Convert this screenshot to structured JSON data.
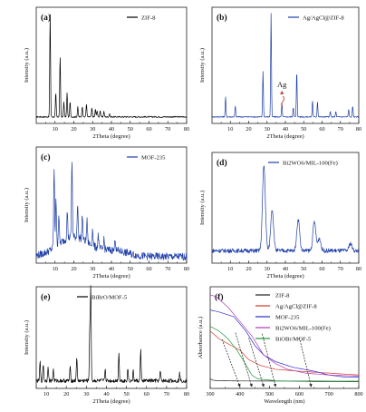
{
  "chart_data": [
    {
      "panel": "(a)",
      "type": "line",
      "xlabel": "2Theta (degree)",
      "ylabel": "Intensity (a.u.)",
      "xlim": [
        0,
        80
      ],
      "xticks": [
        10,
        20,
        30,
        40,
        50,
        60,
        70,
        80
      ],
      "yticks_shown": false,
      "legend_position": "top-right",
      "series": [
        {
          "name": "ZIF-8",
          "color": "#000000",
          "baseline": 0.06,
          "peaks": [
            [
              7.4,
              0.95
            ],
            [
              10.4,
              0.22
            ],
            [
              12.7,
              0.56
            ],
            [
              14.7,
              0.14
            ],
            [
              16.4,
              0.22
            ],
            [
              18.0,
              0.14
            ],
            [
              22.1,
              0.09
            ],
            [
              24.5,
              0.1
            ],
            [
              26.7,
              0.12
            ],
            [
              29.6,
              0.08
            ],
            [
              31.5,
              0.07
            ],
            [
              32.4,
              0.06
            ],
            [
              34.0,
              0.06
            ],
            [
              36.0,
              0.05
            ],
            [
              39.0,
              0.03
            ]
          ],
          "noise": 0.006,
          "width": 0.3
        }
      ]
    },
    {
      "panel": "(b)",
      "type": "line",
      "xlabel": "2Theta (degree)",
      "ylabel": "Intensity (a.u.)",
      "xlim": [
        0,
        80
      ],
      "xticks": [
        10,
        20,
        30,
        40,
        50,
        60,
        70,
        80
      ],
      "yticks_shown": false,
      "legend_position": "top-right",
      "series": [
        {
          "name": "Ag/AgCl@ZIF-8",
          "color": "#1f3fa8",
          "baseline": 0.06,
          "peaks": [
            [
              7.4,
              0.18
            ],
            [
              12.7,
              0.1
            ],
            [
              27.8,
              0.42
            ],
            [
              32.2,
              0.95
            ],
            [
              38.1,
              0.12
            ],
            [
              44.3,
              0.09
            ],
            [
              46.2,
              0.42
            ],
            [
              54.8,
              0.15
            ],
            [
              57.5,
              0.14
            ],
            [
              64.5,
              0.05
            ],
            [
              67.5,
              0.05
            ],
            [
              74.5,
              0.07
            ],
            [
              76.7,
              0.1
            ]
          ],
          "noise": 0.005,
          "width": 0.3
        }
      ],
      "annotations": [
        {
          "text": "Ag",
          "at": [
            38.1,
            0.25
          ]
        }
      ]
    },
    {
      "panel": "(c)",
      "type": "line",
      "xlabel": "2Theta (degree)",
      "ylabel": "Intensity (a.u.)",
      "xlim": [
        0,
        80
      ],
      "xticks": [
        10,
        20,
        30,
        40,
        50,
        60,
        70,
        80
      ],
      "yticks_shown": false,
      "legend_position": "top-right",
      "series": [
        {
          "name": "MOF-235",
          "color": "#1f3fa8",
          "baseline": 0.06,
          "peaks": [
            [
              9.5,
              0.72
            ],
            [
              10.5,
              0.45
            ],
            [
              12.0,
              0.28
            ],
            [
              16.5,
              0.25
            ],
            [
              19.0,
              0.7
            ],
            [
              22.0,
              0.32
            ],
            [
              24.5,
              0.22
            ],
            [
              27.0,
              0.2
            ],
            [
              30.0,
              0.15
            ],
            [
              33.0,
              0.12
            ],
            [
              36.0,
              0.1
            ],
            [
              42.0,
              0.12
            ]
          ],
          "bumps": [
            [
              20,
              0.18,
              12
            ],
            [
              42,
              0.05,
              10
            ]
          ],
          "noise": 0.035,
          "width": 0.35
        }
      ]
    },
    {
      "panel": "(d)",
      "type": "line",
      "xlabel": "2Theta (degree)",
      "ylabel": "Intensity (a.u.)",
      "xlim": [
        0,
        80
      ],
      "xticks": [
        10,
        20,
        30,
        40,
        50,
        60,
        70,
        80
      ],
      "yticks_shown": false,
      "legend_position": "top-right",
      "series": [
        {
          "name": "Bi2WO6/MIL-100(Fe)",
          "color": "#1f3fa8",
          "baseline": 0.12,
          "peaks": [
            [
              28.3,
              0.82
            ],
            [
              32.8,
              0.4
            ],
            [
              47.0,
              0.3
            ],
            [
              55.8,
              0.28
            ],
            [
              58.5,
              0.12
            ],
            [
              75.5,
              0.07
            ]
          ],
          "noise": 0.02,
          "width": 1.1
        }
      ]
    },
    {
      "panel": "(e)",
      "type": "line",
      "xlabel": "2Theta (degree)",
      "ylabel": "Intensity (a.u.)",
      "xlim": [
        5,
        80
      ],
      "xticks": [
        10,
        20,
        30,
        40,
        50,
        60,
        70,
        80
      ],
      "yticks_shown": false,
      "legend_position": "top-left",
      "series": [
        {
          "name": "BiBrO/MOF-5",
          "color": "#000000",
          "baseline": 0.08,
          "peaks": [
            [
              6.9,
              0.2
            ],
            [
              8.5,
              0.18
            ],
            [
              10.9,
              0.16
            ],
            [
              13.5,
              0.12
            ],
            [
              21.9,
              0.14
            ],
            [
              25.2,
              0.25
            ],
            [
              31.7,
              0.55
            ],
            [
              32.2,
              0.95
            ],
            [
              39.4,
              0.12
            ],
            [
              46.2,
              0.3
            ],
            [
              50.7,
              0.13
            ],
            [
              53.4,
              0.1
            ],
            [
              57.1,
              0.32
            ],
            [
              66.9,
              0.1
            ],
            [
              76.5,
              0.08
            ]
          ],
          "noise": 0.02,
          "width": 0.3
        }
      ]
    },
    {
      "panel": "(f)",
      "type": "line",
      "xlabel": "Wavelength (nm)",
      "ylabel": "Absorbance (a.u.)",
      "xlim": [
        300,
        800
      ],
      "xticks": [
        300,
        400,
        500,
        600,
        700,
        800
      ],
      "yticks_shown": false,
      "legend_position": "top-right",
      "series": [
        {
          "name": "ZIF-8",
          "color": "#222222",
          "points": [
            [
              300,
              0.1
            ],
            [
              310,
              0.085
            ],
            [
              330,
              0.08
            ],
            [
              400,
              0.078
            ],
            [
              600,
              0.076
            ],
            [
              800,
              0.075
            ]
          ]
        },
        {
          "name": "Ag/AgCl@ZIF-8",
          "color": "#d43a2a",
          "points": [
            [
              300,
              0.6
            ],
            [
              330,
              0.52
            ],
            [
              370,
              0.45
            ],
            [
              400,
              0.4
            ],
            [
              430,
              0.3
            ],
            [
              470,
              0.24
            ],
            [
              520,
              0.2
            ],
            [
              600,
              0.18
            ],
            [
              700,
              0.16
            ],
            [
              800,
              0.14
            ]
          ]
        },
        {
          "name": "MOF-235",
          "color": "#2a2ad4",
          "points": [
            [
              300,
              0.82
            ],
            [
              330,
              0.8
            ],
            [
              380,
              0.75
            ],
            [
              420,
              0.6
            ],
            [
              450,
              0.45
            ],
            [
              480,
              0.35
            ],
            [
              520,
              0.28
            ],
            [
              580,
              0.22
            ],
            [
              650,
              0.18
            ],
            [
              700,
              0.14
            ],
            [
              750,
              0.12
            ],
            [
              800,
              0.12
            ]
          ]
        },
        {
          "name": "Bi2WO6/MIL-100(Fe)",
          "color": "#b23ab2",
          "points": [
            [
              300,
              0.98
            ],
            [
              320,
              0.96
            ],
            [
              360,
              0.85
            ],
            [
              400,
              0.7
            ],
            [
              440,
              0.55
            ],
            [
              480,
              0.35
            ],
            [
              520,
              0.26
            ],
            [
              560,
              0.2
            ],
            [
              620,
              0.16
            ],
            [
              700,
              0.14
            ],
            [
              800,
              0.13
            ]
          ]
        },
        {
          "name": "BiOBr/MOF-5",
          "color": "#1e9a3a",
          "points": [
            [
              300,
              0.65
            ],
            [
              330,
              0.6
            ],
            [
              360,
              0.52
            ],
            [
              390,
              0.4
            ],
            [
              420,
              0.25
            ],
            [
              440,
              0.14
            ],
            [
              460,
              0.1
            ],
            [
              520,
              0.08
            ],
            [
              650,
              0.07
            ],
            [
              800,
              0.07
            ]
          ]
        }
      ],
      "tangent_intercepts": [
        400,
        440,
        480,
        520,
        640
      ],
      "tangent_color": "#222222"
    }
  ]
}
